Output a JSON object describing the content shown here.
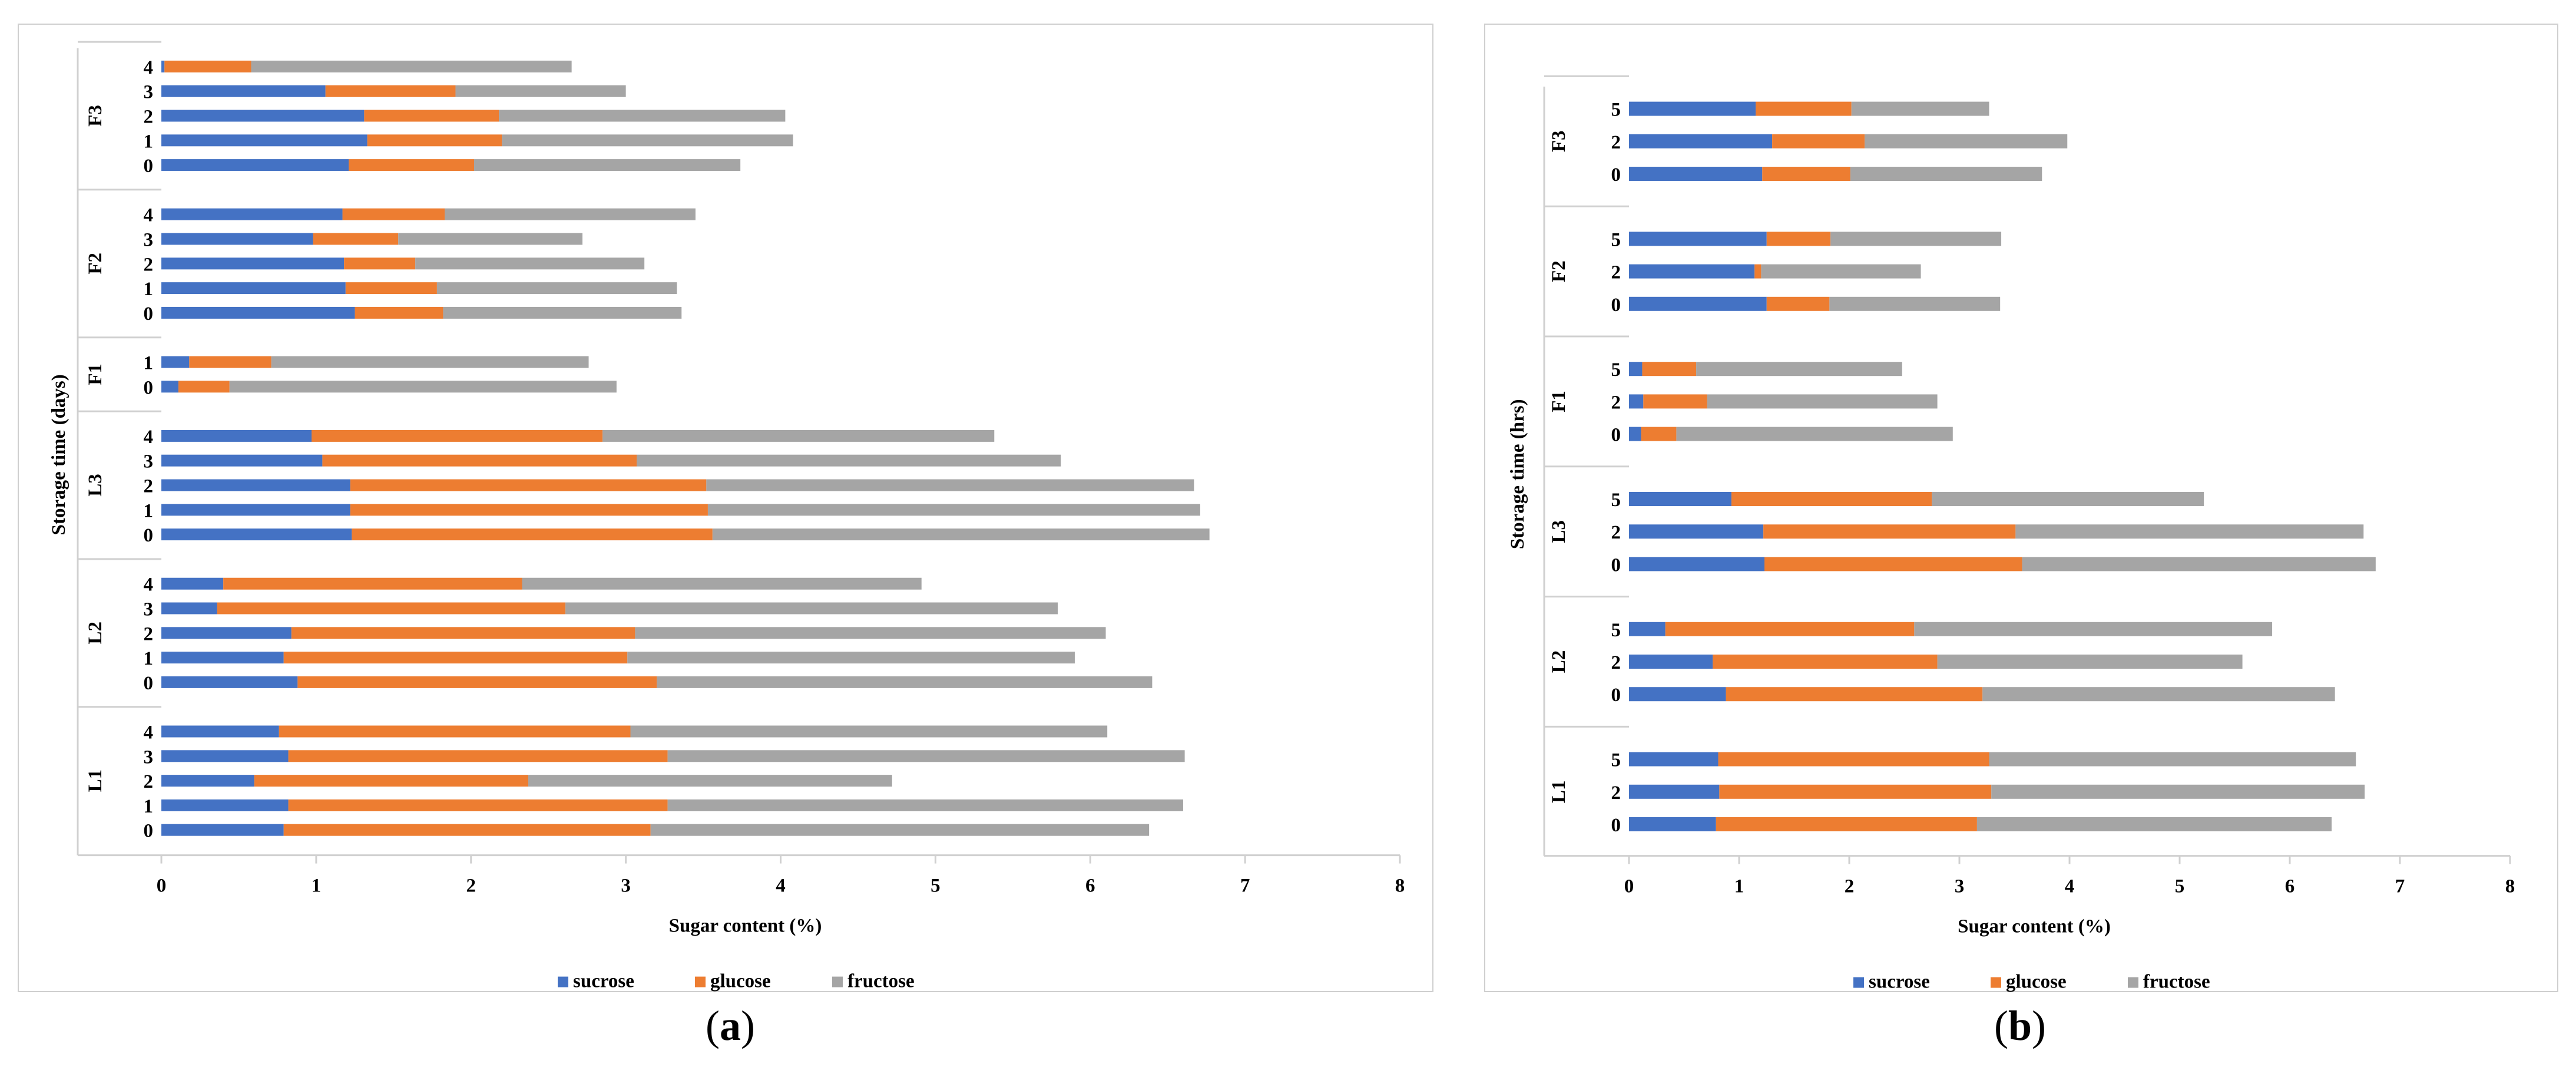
{
  "subfigure_labels": [
    {
      "paren_open": "(",
      "letter": "a",
      "paren_close": ")"
    },
    {
      "paren_open": "(",
      "letter": "b",
      "paren_close": ")"
    }
  ],
  "colors": {
    "sucrose": "#4472c4",
    "glucose": "#ed7d31",
    "fructose": "#a5a5a5",
    "axis": "#d0d0d0"
  },
  "chart_data": [
    {
      "type": "bar",
      "orientation": "horizontal",
      "stacked": true,
      "xlabel": "Sugar content (%)",
      "ylabel": "Storage time (days)",
      "xlim": [
        0,
        8
      ],
      "xticks": [
        "0",
        "1",
        "2",
        "3",
        "4",
        "5",
        "6",
        "7",
        "8"
      ],
      "legend": [
        "sucrose",
        "glucose",
        "fructose"
      ],
      "legend_position": "bottom",
      "groups": [
        {
          "name": "F3",
          "rows": [
            {
              "day": "4",
              "sucrose": 0.02,
              "glucose": 0.56,
              "fructose": 2.07
            },
            {
              "day": "3",
              "sucrose": 1.06,
              "glucose": 0.84,
              "fructose": 1.1
            },
            {
              "day": "2",
              "sucrose": 1.31,
              "glucose": 0.87,
              "fructose": 1.85
            },
            {
              "day": "1",
              "sucrose": 1.33,
              "glucose": 0.87,
              "fructose": 1.88
            },
            {
              "day": "0",
              "sucrose": 1.21,
              "glucose": 0.81,
              "fructose": 1.72
            }
          ]
        },
        {
          "name": "F2",
          "rows": [
            {
              "day": "4",
              "sucrose": 1.17,
              "glucose": 0.66,
              "fructose": 1.62
            },
            {
              "day": "3",
              "sucrose": 0.98,
              "glucose": 0.55,
              "fructose": 1.19
            },
            {
              "day": "2",
              "sucrose": 1.18,
              "glucose": 0.46,
              "fructose": 1.48
            },
            {
              "day": "1",
              "sucrose": 1.19,
              "glucose": 0.59,
              "fructose": 1.55
            },
            {
              "day": "0",
              "sucrose": 1.25,
              "glucose": 0.57,
              "fructose": 1.54
            }
          ]
        },
        {
          "name": "F1",
          "rows": [
            {
              "day": "1",
              "sucrose": 0.18,
              "glucose": 0.53,
              "fructose": 2.05
            },
            {
              "day": "0",
              "sucrose": 0.11,
              "glucose": 0.33,
              "fructose": 2.5
            }
          ]
        },
        {
          "name": "L3",
          "rows": [
            {
              "day": "4",
              "sucrose": 0.97,
              "glucose": 1.88,
              "fructose": 2.53
            },
            {
              "day": "3",
              "sucrose": 1.04,
              "glucose": 2.03,
              "fructose": 2.74
            },
            {
              "day": "2",
              "sucrose": 1.22,
              "glucose": 2.3,
              "fructose": 3.15
            },
            {
              "day": "1",
              "sucrose": 1.22,
              "glucose": 2.31,
              "fructose": 3.18
            },
            {
              "day": "0",
              "sucrose": 1.23,
              "glucose": 2.33,
              "fructose": 3.21
            }
          ]
        },
        {
          "name": "L2",
          "rows": [
            {
              "day": "4",
              "sucrose": 0.4,
              "glucose": 1.93,
              "fructose": 2.58
            },
            {
              "day": "3",
              "sucrose": 0.36,
              "glucose": 2.25,
              "fructose": 3.18
            },
            {
              "day": "2",
              "sucrose": 0.84,
              "glucose": 2.22,
              "fructose": 3.04
            },
            {
              "day": "1",
              "sucrose": 0.79,
              "glucose": 2.22,
              "fructose": 2.89
            },
            {
              "day": "0",
              "sucrose": 0.88,
              "glucose": 2.32,
              "fructose": 3.2
            }
          ]
        },
        {
          "name": "L1",
          "rows": [
            {
              "day": "4",
              "sucrose": 0.76,
              "glucose": 2.27,
              "fructose": 3.08
            },
            {
              "day": "3",
              "sucrose": 0.82,
              "glucose": 2.45,
              "fructose": 3.34
            },
            {
              "day": "2",
              "sucrose": 0.6,
              "glucose": 1.77,
              "fructose": 2.35
            },
            {
              "day": "1",
              "sucrose": 0.82,
              "glucose": 2.45,
              "fructose": 3.33
            },
            {
              "day": "0",
              "sucrose": 0.79,
              "glucose": 2.37,
              "fructose": 3.22
            }
          ]
        }
      ]
    },
    {
      "type": "bar",
      "orientation": "horizontal",
      "stacked": true,
      "xlabel": "Sugar content (%)",
      "ylabel": "Storage time (hrs)",
      "xlim": [
        0,
        8
      ],
      "xticks": [
        "0",
        "1",
        "2",
        "3",
        "4",
        "5",
        "6",
        "7",
        "8"
      ],
      "legend": [
        "sucrose",
        "glucose",
        "fructose"
      ],
      "legend_position": "bottom",
      "groups": [
        {
          "name": "F3",
          "rows": [
            {
              "day": "5",
              "sucrose": 1.15,
              "glucose": 0.87,
              "fructose": 1.25
            },
            {
              "day": "2",
              "sucrose": 1.3,
              "glucose": 0.84,
              "fructose": 1.84
            },
            {
              "day": "0",
              "sucrose": 1.21,
              "glucose": 0.8,
              "fructose": 1.74
            }
          ]
        },
        {
          "name": "F2",
          "rows": [
            {
              "day": "5",
              "sucrose": 1.25,
              "glucose": 0.58,
              "fructose": 1.55
            },
            {
              "day": "2",
              "sucrose": 1.14,
              "glucose": 0.06,
              "fructose": 1.45
            },
            {
              "day": "0",
              "sucrose": 1.25,
              "glucose": 0.57,
              "fructose": 1.55
            }
          ]
        },
        {
          "name": "F1",
          "rows": [
            {
              "day": "5",
              "sucrose": 0.12,
              "glucose": 0.49,
              "fructose": 1.87
            },
            {
              "day": "2",
              "sucrose": 0.13,
              "glucose": 0.58,
              "fructose": 2.09
            },
            {
              "day": "0",
              "sucrose": 0.11,
              "glucose": 0.32,
              "fructose": 2.51
            }
          ]
        },
        {
          "name": "L3",
          "rows": [
            {
              "day": "5",
              "sucrose": 0.93,
              "glucose": 1.82,
              "fructose": 2.47
            },
            {
              "day": "2",
              "sucrose": 1.22,
              "glucose": 2.29,
              "fructose": 3.16
            },
            {
              "day": "0",
              "sucrose": 1.23,
              "glucose": 2.34,
              "fructose": 3.21
            }
          ]
        },
        {
          "name": "L2",
          "rows": [
            {
              "day": "5",
              "sucrose": 0.33,
              "glucose": 2.26,
              "fructose": 3.25
            },
            {
              "day": "2",
              "sucrose": 0.76,
              "glucose": 2.04,
              "fructose": 2.77
            },
            {
              "day": "0",
              "sucrose": 0.88,
              "glucose": 2.33,
              "fructose": 3.2
            }
          ]
        },
        {
          "name": "L1",
          "rows": [
            {
              "day": "5",
              "sucrose": 0.81,
              "glucose": 2.46,
              "fructose": 3.33
            },
            {
              "day": "2",
              "sucrose": 0.82,
              "glucose": 2.47,
              "fructose": 3.39
            },
            {
              "day": "0",
              "sucrose": 0.79,
              "glucose": 2.37,
              "fructose": 3.22
            }
          ]
        }
      ]
    }
  ]
}
